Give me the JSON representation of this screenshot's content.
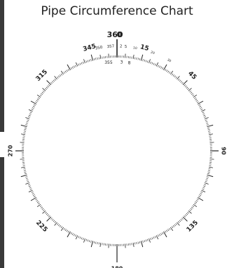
{
  "title": "Pipe Circumference Chart",
  "chart_data": {
    "type": "diagram",
    "scale": "degrees",
    "range": [
      0,
      360
    ],
    "minor_tick_step": 1,
    "medium_tick_step": 5,
    "major_tick_step": 15,
    "major_labels": [
      {
        "text": "360",
        "deg": 359,
        "size": "large"
      },
      {
        "text": "0",
        "deg": 1.2,
        "size": "large"
      },
      {
        "text": "15",
        "deg": 15,
        "size": "medium"
      },
      {
        "text": "45",
        "deg": 45,
        "size": "medium"
      },
      {
        "text": "90",
        "deg": 90,
        "size": "medium"
      },
      {
        "text": "135",
        "deg": 135,
        "size": "medium"
      },
      {
        "text": "180",
        "deg": 180,
        "size": "medium"
      },
      {
        "text": "225",
        "deg": 225,
        "size": "medium"
      },
      {
        "text": "270",
        "deg": 270,
        "size": "medium"
      },
      {
        "text": "315",
        "deg": 315,
        "size": "medium"
      },
      {
        "text": "345",
        "deg": 345,
        "size": "medium"
      }
    ],
    "outer_small_labels": [
      {
        "text": "350",
        "deg": 350
      },
      {
        "text": "357",
        "deg": 356.5
      },
      {
        "text": "2",
        "deg": 2.2
      },
      {
        "text": "5",
        "deg": 4.8
      },
      {
        "text": "10",
        "deg": 10
      },
      {
        "text": "20",
        "deg": 20
      },
      {
        "text": "30",
        "deg": 30
      }
    ],
    "inner_small_labels": [
      {
        "text": "355",
        "deg": 354.5
      },
      {
        "text": "3",
        "deg": 3
      },
      {
        "text": "8",
        "deg": 8
      }
    ],
    "line_color": "#222222"
  }
}
